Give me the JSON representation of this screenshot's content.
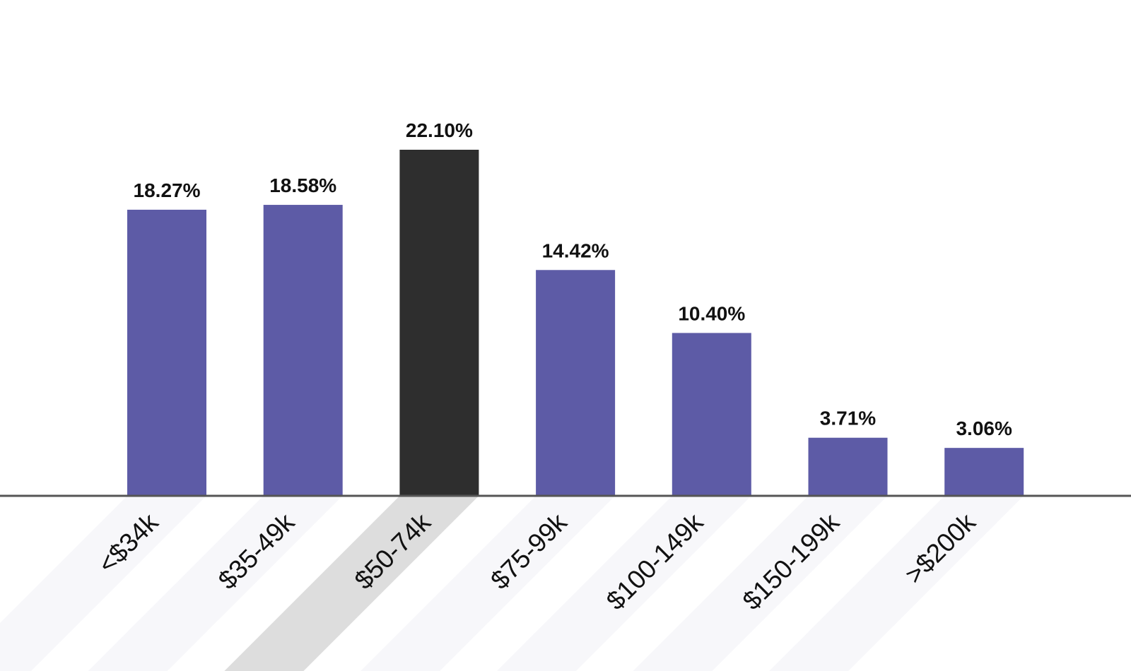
{
  "chart_data": {
    "type": "bar",
    "categories": [
      "<$34k",
      "$35-49k",
      "$50-74k",
      "$75-99k",
      "$100-149k",
      "$150-199k",
      ">$200k"
    ],
    "values": [
      18.27,
      18.58,
      22.1,
      14.42,
      10.4,
      3.71,
      3.06
    ],
    "value_labels": [
      "18.27%",
      "18.58%",
      "22.10%",
      "14.42%",
      "10.40%",
      "3.71%",
      "3.06%"
    ],
    "colors": [
      "#5d5ba6",
      "#5d5ba6",
      "#2e2e2e",
      "#5d5ba6",
      "#5d5ba6",
      "#5d5ba6",
      "#5d5ba6"
    ]
  }
}
